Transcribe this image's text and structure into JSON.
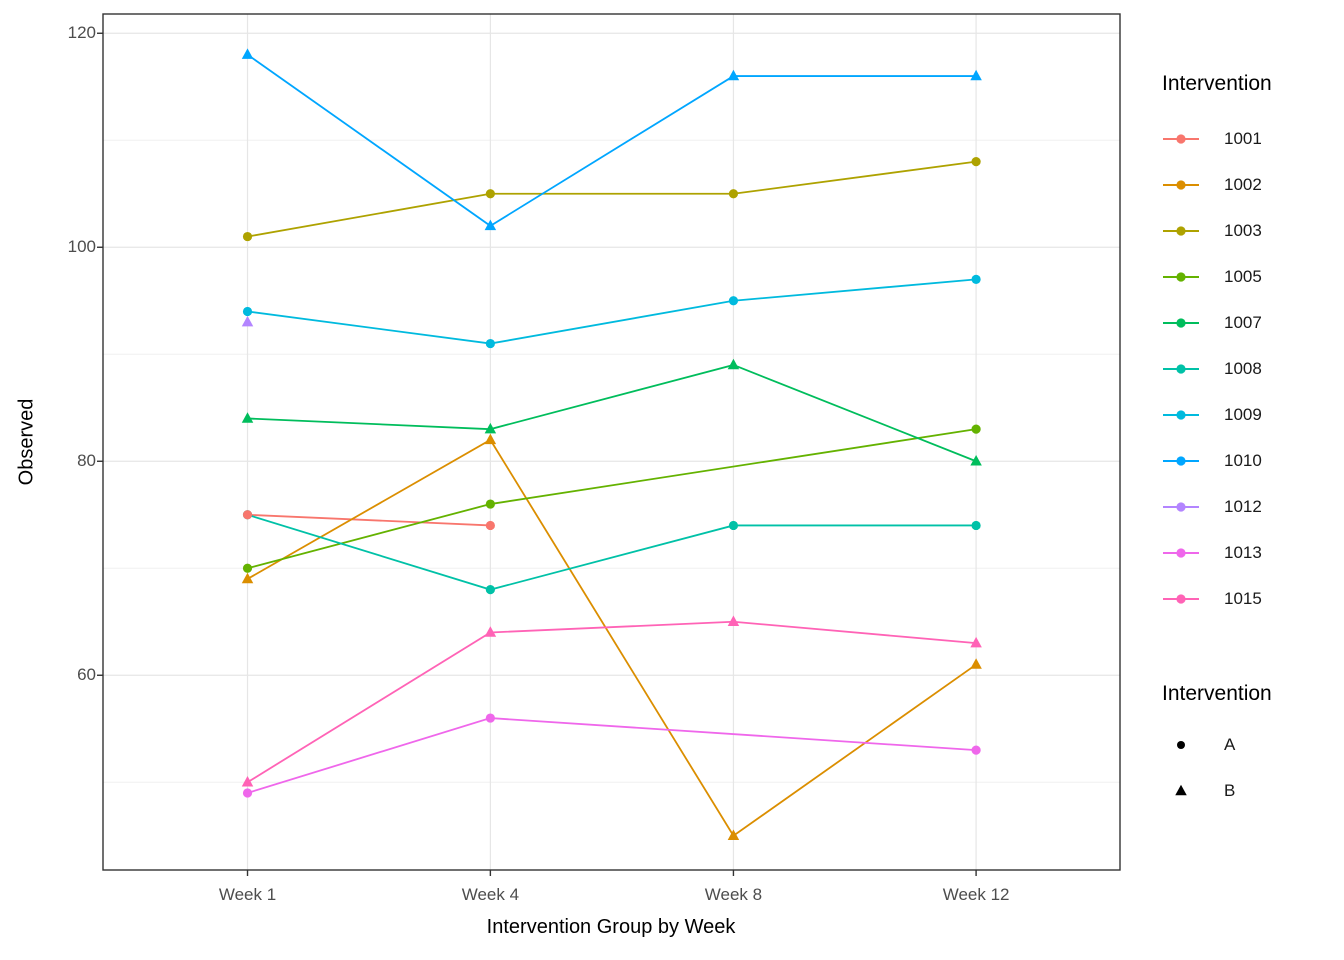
{
  "chart_data": {
    "type": "line",
    "title": "",
    "xlabel": "Intervention Group by Week",
    "ylabel": "Observed",
    "categories": [
      "Week 1",
      "Week 4",
      "Week 8",
      "Week 12"
    ],
    "ylim": [
      41.8,
      121.8
    ],
    "y_major_ticks": [
      60,
      80,
      100,
      120
    ],
    "y_minor_gridlines": [
      50,
      70,
      90,
      110
    ],
    "grid": true,
    "legend_position": "right",
    "series": [
      {
        "name": "1001",
        "intervention": "A",
        "shape": "circle",
        "color": "#F8766D",
        "values": [
          75,
          74,
          null,
          null
        ]
      },
      {
        "name": "1002",
        "intervention": "B",
        "shape": "triangle",
        "color": "#DB8E00",
        "values": [
          69,
          82,
          45,
          61
        ]
      },
      {
        "name": "1003",
        "intervention": "A",
        "shape": "circle",
        "color": "#AEA200",
        "values": [
          101,
          105,
          105,
          108
        ]
      },
      {
        "name": "1005",
        "intervention": "A",
        "shape": "circle",
        "color": "#64B200",
        "values": [
          70,
          76,
          null,
          83
        ]
      },
      {
        "name": "1007",
        "intervention": "B",
        "shape": "triangle",
        "color": "#00BD5C",
        "values": [
          84,
          83,
          89,
          80
        ]
      },
      {
        "name": "1008",
        "intervention": "A",
        "shape": "circle",
        "color": "#00C1A7",
        "values": [
          75,
          68,
          74,
          74
        ]
      },
      {
        "name": "1009",
        "intervention": "A",
        "shape": "circle",
        "color": "#00BADE",
        "values": [
          94,
          91,
          95,
          97
        ]
      },
      {
        "name": "1010",
        "intervention": "B",
        "shape": "triangle",
        "color": "#00A6FF",
        "values": [
          118,
          102,
          116,
          116
        ]
      },
      {
        "name": "1012",
        "intervention": "B",
        "shape": "triangle",
        "color": "#B385FF",
        "values": [
          93,
          null,
          null,
          null
        ]
      },
      {
        "name": "1013",
        "intervention": "A",
        "shape": "circle",
        "color": "#EF67EB",
        "values": [
          49,
          56,
          null,
          53
        ]
      },
      {
        "name": "1015",
        "intervention": "B",
        "shape": "triangle",
        "color": "#FF63B6",
        "values": [
          50,
          64,
          65,
          63
        ]
      }
    ]
  },
  "legends": {
    "color_legend": {
      "title": "Intervention"
    },
    "shape_legend": {
      "title": "Intervention",
      "items": [
        {
          "label": "A",
          "shape": "circle"
        },
        {
          "label": "B",
          "shape": "triangle"
        }
      ]
    }
  },
  "colors": {
    "panel_border": "#333333",
    "grid_major": "#e6e6e6",
    "grid_minor": "#f0f0f0",
    "tick_mark": "#333333",
    "tick_label": "#4d4d4d",
    "axis_title": "#000000",
    "shape_key": "#000000"
  }
}
